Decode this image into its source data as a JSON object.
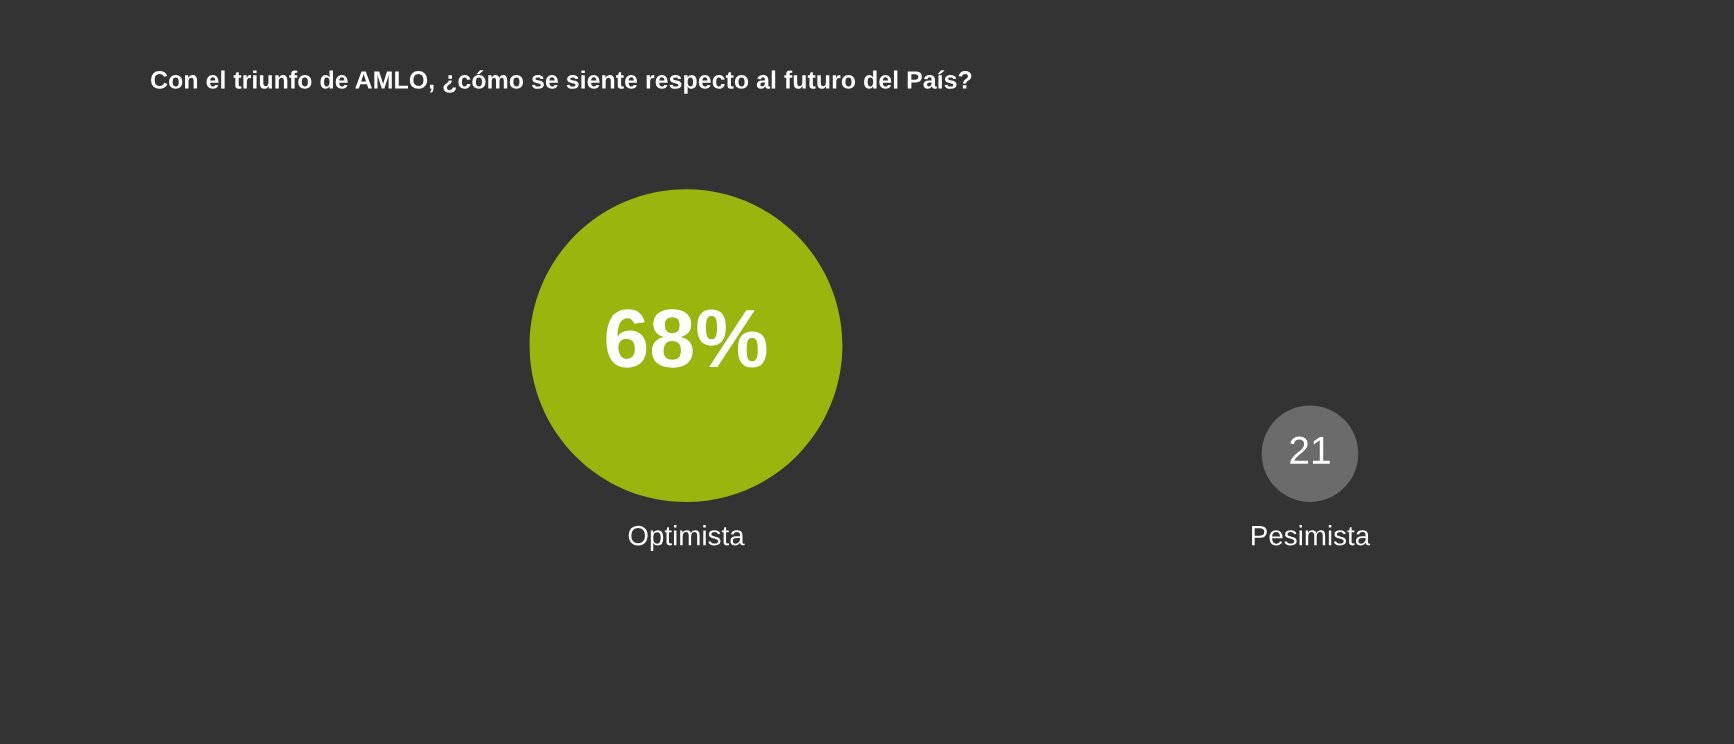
{
  "chart_data": {
    "type": "other",
    "title": "Con el triunfo de AMLO, ¿cómo se siente respecto al futuro del País?",
    "categories": [
      "Optimista",
      "Pesimista"
    ],
    "values": [
      68,
      21
    ],
    "value_labels": [
      "68%",
      "21"
    ],
    "colors": [
      "#9bb50f",
      "#6b6b6b"
    ]
  }
}
